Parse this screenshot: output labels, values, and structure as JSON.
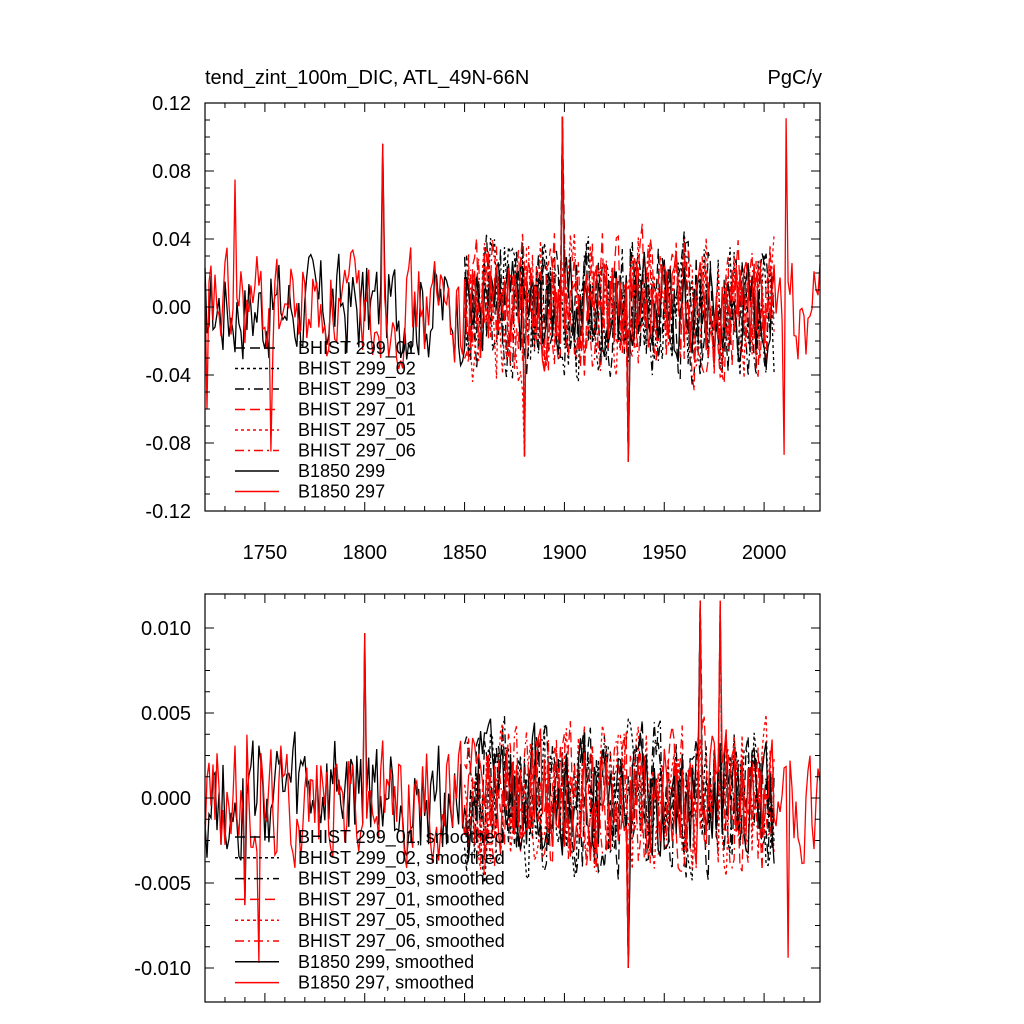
{
  "chart_data": [
    {
      "type": "line",
      "title": "tend_zint_100m_DIC, ATL_49N-66N",
      "units": "PgC/y",
      "xlabel": "",
      "ylabel": "",
      "xlim": [
        1720,
        2028
      ],
      "ylim": [
        -0.12,
        0.12
      ],
      "xticks": [
        1750,
        1800,
        1850,
        1900,
        1950,
        2000
      ],
      "xtick_labels": [
        "1750",
        "1800",
        "1850",
        "1900",
        "1950",
        "2000"
      ],
      "yticks": [
        -0.12,
        -0.08,
        -0.04,
        0.0,
        0.04,
        0.08,
        0.12
      ],
      "ytick_labels": [
        "-0.12",
        "-0.08",
        "-0.04",
        "0.00",
        "0.04",
        "0.08",
        "0.12"
      ],
      "legend_position": "lower-left",
      "series": [
        {
          "name": "BHIST 299_01",
          "color": "#000000",
          "dash": "long-dash",
          "x_range": [
            1850,
            2005
          ],
          "amplitude": 0.04,
          "seed": 11
        },
        {
          "name": "BHIST 299_02",
          "color": "#000000",
          "dash": "dot",
          "x_range": [
            1850,
            2005
          ],
          "amplitude": 0.04,
          "seed": 12
        },
        {
          "name": "BHIST 299_03",
          "color": "#000000",
          "dash": "dash-dot",
          "x_range": [
            1850,
            2005
          ],
          "amplitude": 0.04,
          "seed": 13
        },
        {
          "name": "BHIST 297_01",
          "color": "#ff0000",
          "dash": "long-dash",
          "x_range": [
            1850,
            2005
          ],
          "amplitude": 0.04,
          "seed": 14
        },
        {
          "name": "BHIST 297_05",
          "color": "#ff0000",
          "dash": "dot",
          "x_range": [
            1850,
            2005
          ],
          "amplitude": 0.04,
          "seed": 15
        },
        {
          "name": "BHIST 297_06",
          "color": "#ff0000",
          "dash": "dash-dot",
          "x_range": [
            1850,
            2005
          ],
          "amplitude": 0.04,
          "seed": 16
        },
        {
          "name": "B1850 299",
          "color": "#000000",
          "dash": "solid",
          "x_range": [
            1720,
            2005
          ],
          "amplitude": 0.03,
          "seed": 17
        },
        {
          "name": "B1850 297",
          "color": "#ff0000",
          "dash": "solid",
          "x_range": [
            1720,
            2028
          ],
          "amplitude": 0.03,
          "seed": 18
        }
      ],
      "annotations": [
        {
          "x": 1899,
          "y": 0.112
        },
        {
          "x": 2011,
          "y": 0.111
        },
        {
          "x": 2010,
          "y": -0.087
        },
        {
          "x": 1932,
          "y": -0.091
        },
        {
          "x": 1880,
          "y": -0.088
        },
        {
          "x": 1809,
          "y": 0.096
        },
        {
          "x": 1735,
          "y": 0.075
        },
        {
          "x": 1753,
          "y": -0.085
        },
        {
          "x": 1721,
          "y": -0.06
        }
      ]
    },
    {
      "type": "line",
      "title": "",
      "xlabel": "",
      "ylabel": "",
      "xlim": [
        1720,
        2028
      ],
      "ylim": [
        -0.012,
        0.012
      ],
      "xticks": [
        1750,
        1800,
        1850,
        1900,
        1950,
        2000
      ],
      "xtick_labels": [],
      "yticks": [
        -0.01,
        -0.005,
        0.0,
        0.005,
        0.01
      ],
      "ytick_labels": [
        "-0.010",
        "-0.005",
        "0.000",
        "0.005",
        "0.010"
      ],
      "legend_position": "lower-left",
      "series": [
        {
          "name": "BHIST 299_01, smoothed",
          "color": "#000000",
          "dash": "long-dash",
          "x_range": [
            1850,
            2005
          ],
          "amplitude": 0.004,
          "seed": 21
        },
        {
          "name": "BHIST 299_02, smoothed",
          "color": "#000000",
          "dash": "dot",
          "x_range": [
            1850,
            2005
          ],
          "amplitude": 0.004,
          "seed": 22
        },
        {
          "name": "BHIST 299_03, smoothed",
          "color": "#000000",
          "dash": "dash-dot",
          "x_range": [
            1850,
            2005
          ],
          "amplitude": 0.004,
          "seed": 23
        },
        {
          "name": "BHIST 297_01, smoothed",
          "color": "#ff0000",
          "dash": "long-dash",
          "x_range": [
            1850,
            2005
          ],
          "amplitude": 0.004,
          "seed": 24
        },
        {
          "name": "BHIST 297_05, smoothed",
          "color": "#ff0000",
          "dash": "dot",
          "x_range": [
            1850,
            2005
          ],
          "amplitude": 0.004,
          "seed": 25
        },
        {
          "name": "BHIST 297_06, smoothed",
          "color": "#ff0000",
          "dash": "dash-dot",
          "x_range": [
            1850,
            2005
          ],
          "amplitude": 0.004,
          "seed": 26
        },
        {
          "name": "B1850 299, smoothed",
          "color": "#000000",
          "dash": "solid",
          "x_range": [
            1720,
            2005
          ],
          "amplitude": 0.0035,
          "seed": 27
        },
        {
          "name": "B1850 297, smoothed",
          "color": "#ff0000",
          "dash": "solid",
          "x_range": [
            1720,
            2028
          ],
          "amplitude": 0.0035,
          "seed": 28
        }
      ],
      "annotations": [
        {
          "x": 1800,
          "y": 0.0097
        },
        {
          "x": 1968,
          "y": 0.0116
        },
        {
          "x": 1978,
          "y": 0.0116
        },
        {
          "x": 1932,
          "y": -0.01
        },
        {
          "x": 2012,
          "y": -0.0094
        },
        {
          "x": 1747,
          "y": -0.0097
        },
        {
          "x": 1740,
          "y": -0.0063
        }
      ]
    }
  ]
}
